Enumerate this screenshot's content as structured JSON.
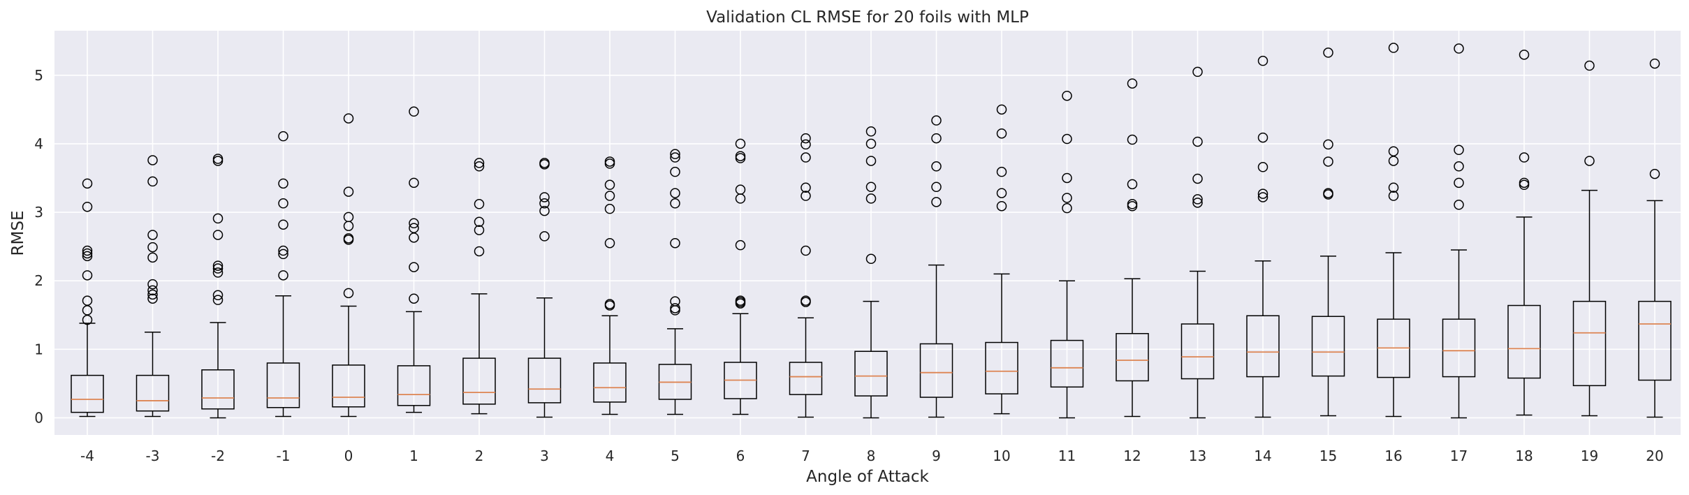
{
  "chart_data": {
    "type": "box",
    "title": "Validation CL RMSE for 20 foils with MLP",
    "xlabel": "Angle of Attack",
    "ylabel": "RMSE",
    "ylim": [
      -0.25,
      5.65
    ],
    "yticks": [
      0,
      1,
      2,
      3,
      4,
      5
    ],
    "grid": true,
    "colors": {
      "plot_bg": "#eaeaf2",
      "grid": "#ffffff",
      "box": "#000000",
      "median": "#dd8452"
    },
    "categories": [
      "-4",
      "-3",
      "-2",
      "-1",
      "0",
      "1",
      "2",
      "3",
      "4",
      "5",
      "6",
      "7",
      "8",
      "9",
      "10",
      "11",
      "12",
      "13",
      "14",
      "15",
      "16",
      "17",
      "18",
      "19",
      "20"
    ],
    "boxes": [
      {
        "x": "-4",
        "whislo": 0.02,
        "q1": 0.08,
        "med": 0.27,
        "q3": 0.62,
        "whishi": 1.38,
        "fliers": [
          1.43,
          1.57,
          1.71,
          2.08,
          2.36,
          2.4,
          2.44,
          3.08,
          3.42
        ]
      },
      {
        "x": "-3",
        "whislo": 0.02,
        "q1": 0.1,
        "med": 0.25,
        "q3": 0.62,
        "whishi": 1.25,
        "fliers": [
          1.74,
          1.8,
          1.86,
          1.95,
          2.34,
          2.49,
          2.67,
          3.45,
          3.76
        ]
      },
      {
        "x": "-2",
        "whislo": 0.0,
        "q1": 0.13,
        "med": 0.29,
        "q3": 0.7,
        "whishi": 1.39,
        "fliers": [
          1.72,
          1.79,
          2.12,
          2.18,
          2.22,
          2.67,
          2.91,
          3.75,
          3.78
        ]
      },
      {
        "x": "-1",
        "whislo": 0.02,
        "q1": 0.15,
        "med": 0.29,
        "q3": 0.8,
        "whishi": 1.78,
        "fliers": [
          2.08,
          2.39,
          2.44,
          2.82,
          3.13,
          3.42,
          4.11
        ]
      },
      {
        "x": "0",
        "whislo": 0.02,
        "q1": 0.16,
        "med": 0.3,
        "q3": 0.77,
        "whishi": 1.63,
        "fliers": [
          1.82,
          2.6,
          2.62,
          2.8,
          2.93,
          3.3,
          4.37
        ]
      },
      {
        "x": "1",
        "whislo": 0.08,
        "q1": 0.18,
        "med": 0.34,
        "q3": 0.76,
        "whishi": 1.55,
        "fliers": [
          1.74,
          2.2,
          2.63,
          2.77,
          2.84,
          3.43,
          4.47
        ]
      },
      {
        "x": "2",
        "whislo": 0.06,
        "q1": 0.2,
        "med": 0.37,
        "q3": 0.87,
        "whishi": 1.81,
        "fliers": [
          2.43,
          2.74,
          2.86,
          3.12,
          3.67,
          3.72
        ]
      },
      {
        "x": "3",
        "whislo": 0.01,
        "q1": 0.22,
        "med": 0.42,
        "q3": 0.87,
        "whishi": 1.75,
        "fliers": [
          2.65,
          3.02,
          3.13,
          3.22,
          3.7,
          3.72
        ]
      },
      {
        "x": "4",
        "whislo": 0.05,
        "q1": 0.23,
        "med": 0.44,
        "q3": 0.8,
        "whishi": 1.49,
        "fliers": [
          1.64,
          1.66,
          2.55,
          3.05,
          3.24,
          3.4,
          3.71,
          3.74
        ]
      },
      {
        "x": "5",
        "whislo": 0.05,
        "q1": 0.27,
        "med": 0.52,
        "q3": 0.78,
        "whishi": 1.3,
        "fliers": [
          1.57,
          1.6,
          1.7,
          2.55,
          3.13,
          3.28,
          3.59,
          3.8,
          3.85
        ]
      },
      {
        "x": "6",
        "whislo": 0.05,
        "q1": 0.28,
        "med": 0.55,
        "q3": 0.81,
        "whishi": 1.52,
        "fliers": [
          1.67,
          1.69,
          1.71,
          2.52,
          3.2,
          3.33,
          3.79,
          3.82,
          4.0
        ]
      },
      {
        "x": "7",
        "whislo": 0.01,
        "q1": 0.34,
        "med": 0.6,
        "q3": 0.81,
        "whishi": 1.46,
        "fliers": [
          1.69,
          1.71,
          2.44,
          3.24,
          3.36,
          3.8,
          3.99,
          4.08
        ]
      },
      {
        "x": "8",
        "whislo": 0.0,
        "q1": 0.32,
        "med": 0.61,
        "q3": 0.97,
        "whishi": 1.7,
        "fliers": [
          2.32,
          3.2,
          3.37,
          3.75,
          4.0,
          4.18
        ]
      },
      {
        "x": "9",
        "whislo": 0.01,
        "q1": 0.3,
        "med": 0.66,
        "q3": 1.08,
        "whishi": 2.23,
        "fliers": [
          3.15,
          3.37,
          3.67,
          4.08,
          4.34
        ]
      },
      {
        "x": "10",
        "whislo": 0.06,
        "q1": 0.35,
        "med": 0.68,
        "q3": 1.1,
        "whishi": 2.1,
        "fliers": [
          3.09,
          3.28,
          3.59,
          4.15,
          4.5
        ]
      },
      {
        "x": "11",
        "whislo": 0.0,
        "q1": 0.45,
        "med": 0.73,
        "q3": 1.13,
        "whishi": 2.0,
        "fliers": [
          3.06,
          3.21,
          3.5,
          4.07,
          4.7
        ]
      },
      {
        "x": "12",
        "whislo": 0.02,
        "q1": 0.54,
        "med": 0.84,
        "q3": 1.23,
        "whishi": 2.03,
        "fliers": [
          3.09,
          3.12,
          3.41,
          4.06,
          4.88
        ]
      },
      {
        "x": "13",
        "whislo": 0.0,
        "q1": 0.57,
        "med": 0.89,
        "q3": 1.37,
        "whishi": 2.14,
        "fliers": [
          3.14,
          3.19,
          3.49,
          4.03,
          5.05
        ]
      },
      {
        "x": "14",
        "whislo": 0.01,
        "q1": 0.6,
        "med": 0.96,
        "q3": 1.49,
        "whishi": 2.29,
        "fliers": [
          3.22,
          3.27,
          3.66,
          4.09,
          5.21
        ]
      },
      {
        "x": "15",
        "whislo": 0.03,
        "q1": 0.61,
        "med": 0.96,
        "q3": 1.48,
        "whishi": 2.36,
        "fliers": [
          3.26,
          3.28,
          3.74,
          3.99,
          5.33
        ]
      },
      {
        "x": "16",
        "whislo": 0.02,
        "q1": 0.59,
        "med": 1.02,
        "q3": 1.44,
        "whishi": 2.41,
        "fliers": [
          3.24,
          3.36,
          3.75,
          3.89,
          5.4
        ]
      },
      {
        "x": "17",
        "whislo": 0.0,
        "q1": 0.6,
        "med": 0.98,
        "q3": 1.44,
        "whishi": 2.45,
        "fliers": [
          3.11,
          3.43,
          3.67,
          3.91,
          5.39
        ]
      },
      {
        "x": "18",
        "whislo": 0.04,
        "q1": 0.58,
        "med": 1.01,
        "q3": 1.64,
        "whishi": 2.93,
        "fliers": [
          3.4,
          3.43,
          3.8,
          5.3
        ]
      },
      {
        "x": "19",
        "whislo": 0.03,
        "q1": 0.47,
        "med": 1.24,
        "q3": 1.7,
        "whishi": 3.32,
        "fliers": [
          3.75,
          5.14
        ]
      },
      {
        "x": "20",
        "whislo": 0.01,
        "q1": 0.55,
        "med": 1.37,
        "q3": 1.7,
        "whishi": 3.17,
        "fliers": [
          3.56,
          5.17
        ]
      }
    ]
  }
}
